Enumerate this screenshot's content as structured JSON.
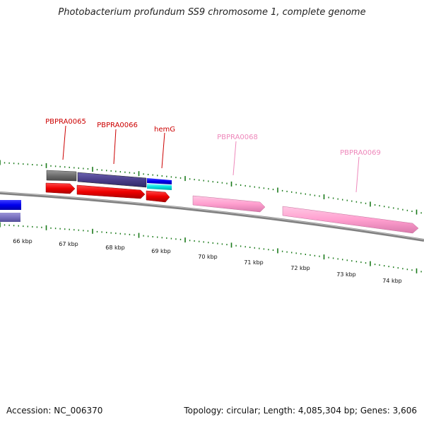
{
  "title": "Photobacterium profundum SS9 chromosome 1, complete genome",
  "genes": [
    {
      "id": "g-pbpra0065",
      "label": "PBPRA0065",
      "color": "#cc0000"
    },
    {
      "id": "g-pbpra0066",
      "label": "PBPRA0066",
      "color": "#cc0000"
    },
    {
      "id": "g-hemg",
      "label": "hemG",
      "color": "#cc0000"
    },
    {
      "id": "g-pbpra0068",
      "label": "PBPRA0068",
      "color": "#ee88bb"
    },
    {
      "id": "g-pbpra0069",
      "label": "PBPRA0069",
      "color": "#ee88bb"
    }
  ],
  "ruler": [
    "66 kbp",
    "67 kbp",
    "68 kbp",
    "69 kbp",
    "70 kbp",
    "71 kbp",
    "72 kbp",
    "73 kbp",
    "74 kbp"
  ],
  "footer": {
    "accession": "Accession: NC_006370",
    "topology": "Topology: circular; Length: 4,085,304 bp; Genes: 3,606"
  },
  "colors": {
    "backbone": "#808080",
    "cds_red": "#ee0000",
    "cds_pink": "#ff9fcf",
    "cds_navy": "#4a3f8a",
    "cds_gray": "#707070",
    "cds_blue": "#0000ee",
    "cds_cyan": "#00e0e0",
    "tick_green": "#1a7a1a"
  }
}
